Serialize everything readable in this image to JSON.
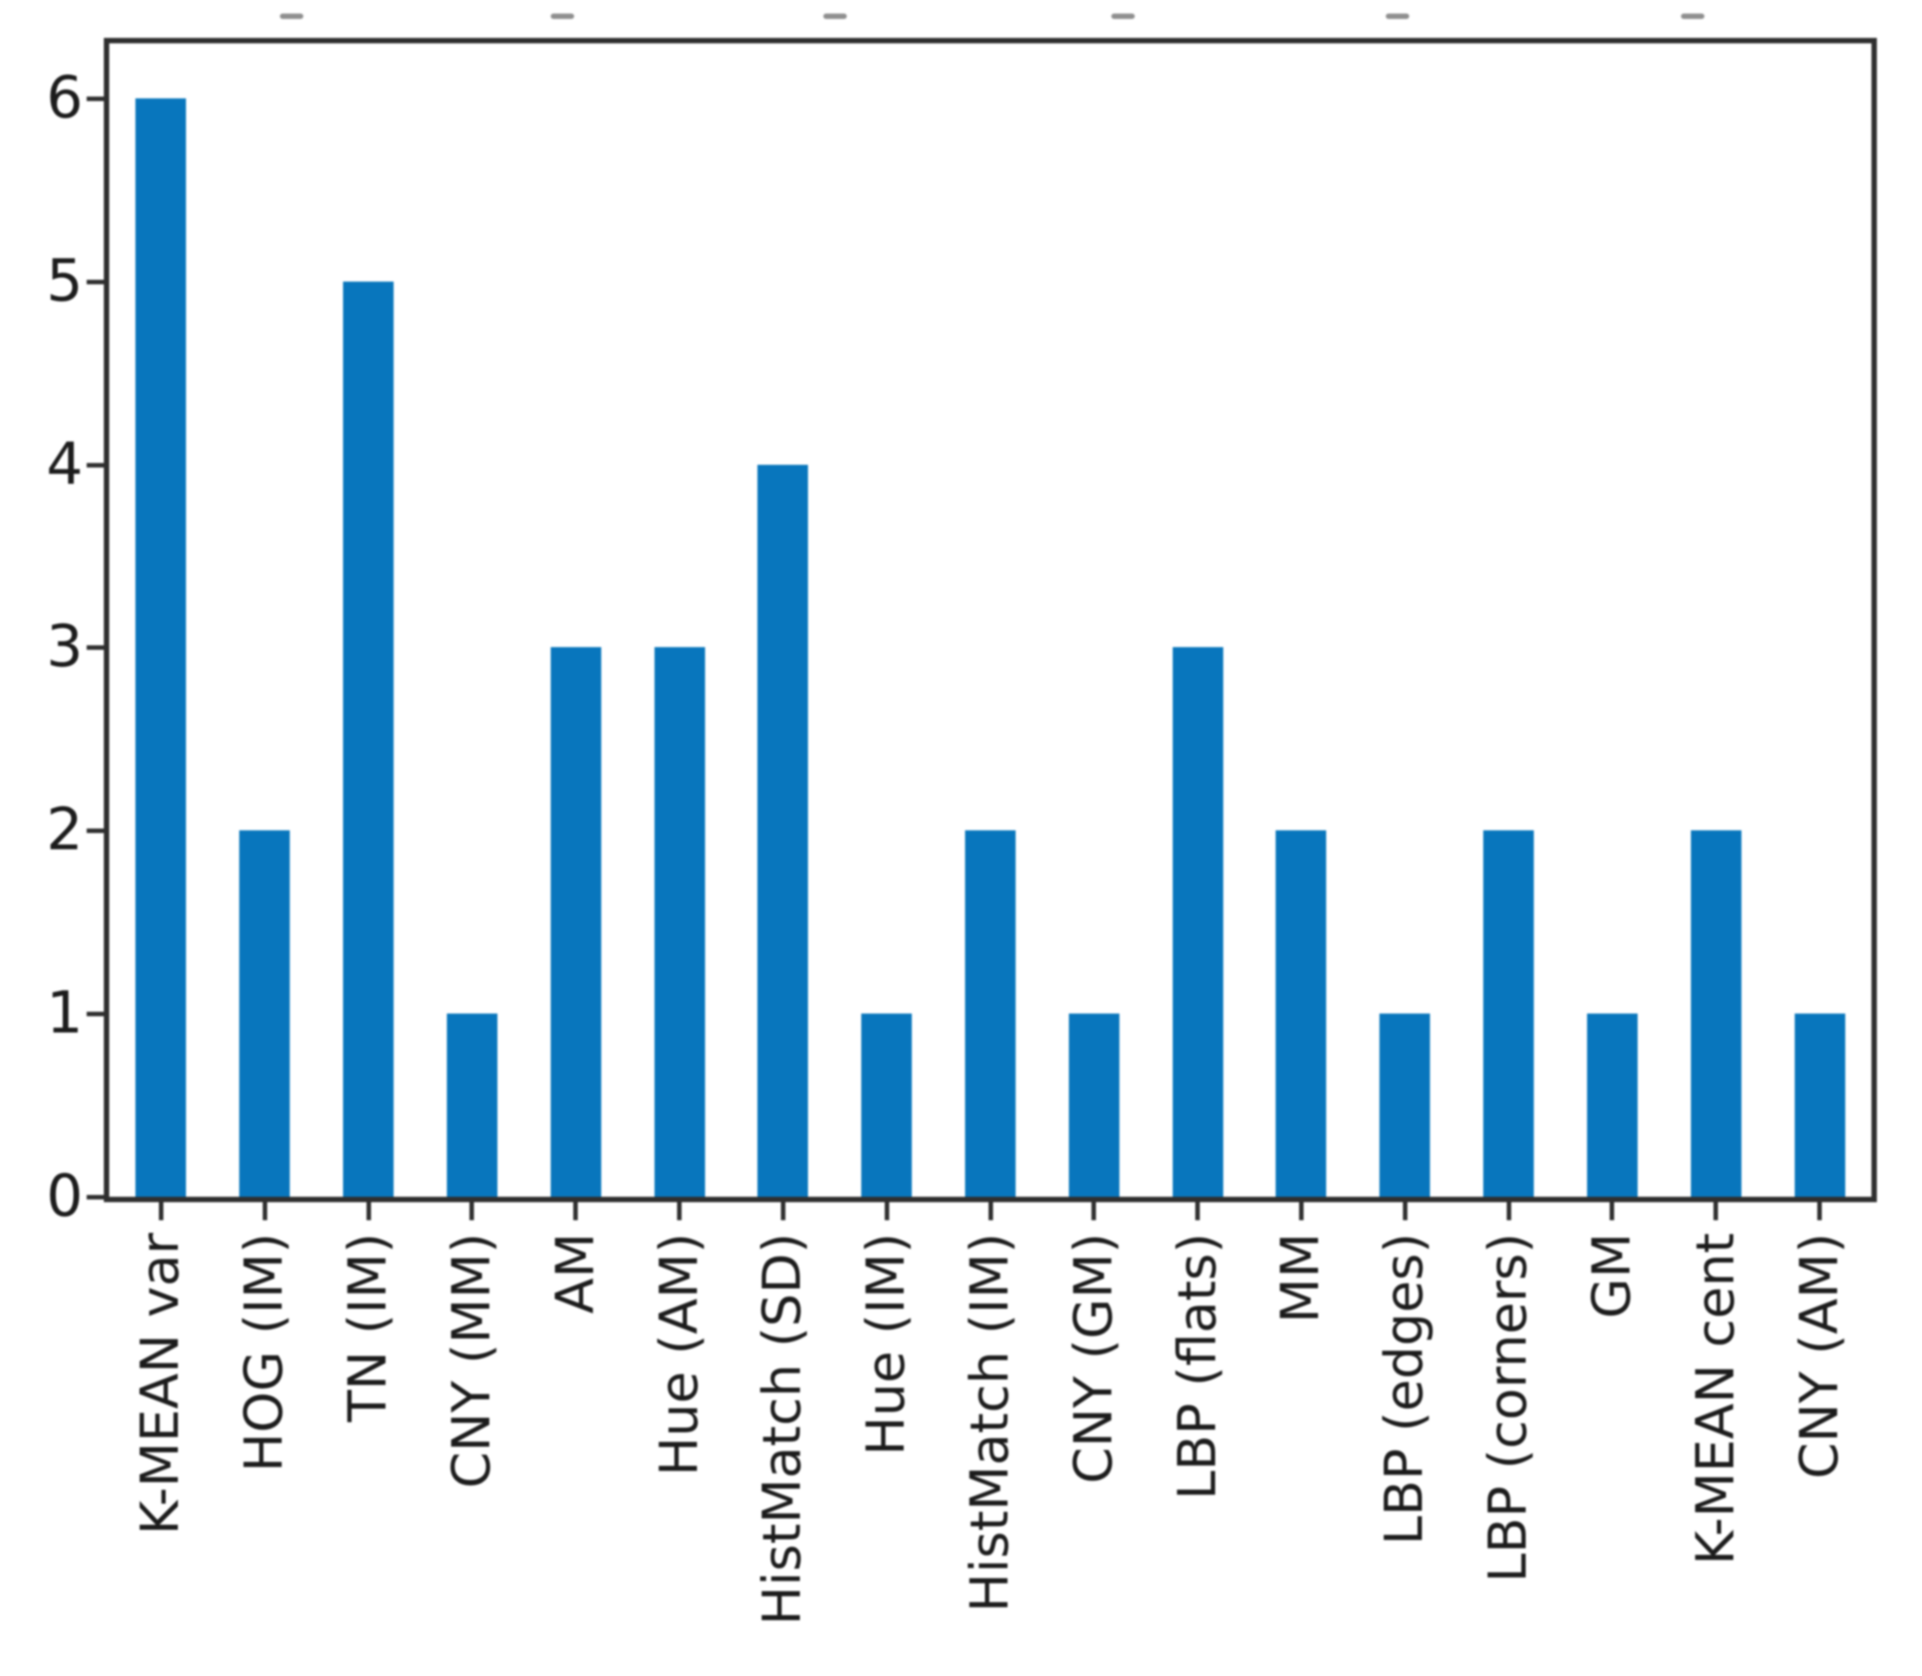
{
  "page": {
    "background": "#ffffff"
  },
  "chart_data": {
    "type": "bar",
    "title": "",
    "xlabel": "",
    "ylabel": "",
    "categories": [
      "K-MEAN var",
      "HOG (IM)",
      "TN (IM)",
      "CNY (MM)",
      "AM",
      "Hue (AM)",
      "HistMatch (SD)",
      "Hue (IM)",
      "HistMatch (IM)",
      "CNY (GM)",
      "LBP (flats)",
      "MM",
      "LBP (edges)",
      "LBP (corners)",
      "GM",
      "K-MEAN cent",
      "CNY (AM)"
    ],
    "values": [
      6,
      2,
      5,
      1,
      3,
      3,
      4,
      1,
      2,
      1,
      3,
      2,
      1,
      2,
      1,
      2,
      1
    ],
    "yticks": [
      0,
      1,
      2,
      3,
      4,
      5,
      6
    ],
    "ylim": [
      0,
      6.3
    ],
    "grid": false,
    "legend_position": "none",
    "bar_color": "#0876bd",
    "axis_color": "#2f2f2f",
    "tick_label_color": "#1c1c1c"
  },
  "top_edge_artifacts": {
    "description": "faint remnants of a cropped text line above the chart",
    "x_centers": [
      323,
      623,
      925,
      1244,
      1548,
      1875
    ],
    "color": "#8f8f8f"
  }
}
